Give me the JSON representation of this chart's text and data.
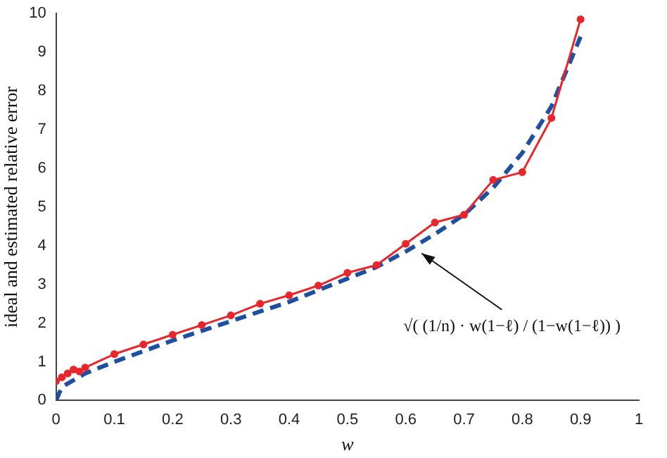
{
  "chart_data": {
    "type": "line",
    "xlabel": "w",
    "ylabel": "ideal and estimated relative error",
    "xlim": [
      0,
      1
    ],
    "xticks": [
      0,
      0.1,
      0.2,
      0.3,
      0.4,
      0.5,
      0.6,
      0.7,
      0.8,
      0.9,
      1
    ],
    "ylim": [
      0,
      10
    ],
    "yticks": [
      0,
      1,
      2,
      3,
      4,
      5,
      6,
      7,
      8,
      9,
      10
    ],
    "grid": false,
    "legend": false,
    "series": [
      {
        "color": "#e8262b",
        "marker": "circle",
        "line_style": "solid",
        "x": [
          0,
          0.01,
          0.02,
          0.03,
          0.04,
          0.05,
          0.1,
          0.15,
          0.2,
          0.25,
          0.3,
          0.35,
          0.4,
          0.45,
          0.5,
          0.55,
          0.6,
          0.65,
          0.7,
          0.75,
          0.8,
          0.85,
          0.9
        ],
        "values": [
          0.5,
          0.6,
          0.7,
          0.8,
          0.75,
          0.85,
          1.2,
          1.45,
          1.7,
          1.95,
          2.2,
          2.5,
          2.72,
          2.97,
          3.3,
          3.5,
          4.05,
          4.6,
          4.8,
          5.7,
          5.9,
          7.3,
          9.85
        ]
      },
      {
        "color": "#1f4fa0",
        "marker": "none",
        "line_style": "dashed",
        "x": [
          0,
          0.01,
          0.05,
          0.1,
          0.2,
          0.3,
          0.4,
          0.5,
          0.55,
          0.6,
          0.65,
          0.7,
          0.75,
          0.8,
          0.85,
          0.9
        ],
        "values": [
          0,
          0.35,
          0.7,
          1.0,
          1.55,
          2.05,
          2.55,
          3.15,
          3.45,
          3.85,
          4.3,
          4.8,
          5.5,
          6.4,
          7.6,
          9.4
        ]
      }
    ],
    "annotations": [
      {
        "text": "√( (1/n) · w(1−ℓ) / (1−w(1−ℓ)) )",
        "x": 0.62,
        "y": 3.95
      }
    ]
  }
}
